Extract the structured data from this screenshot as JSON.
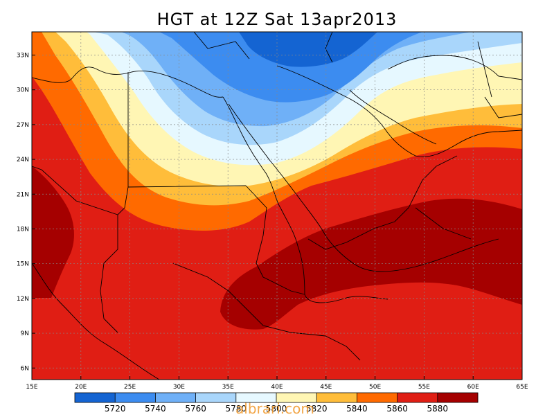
{
  "title": "HGT at 12Z Sat 13apr2013",
  "x_ticks": [
    "15E",
    "20E",
    "25E",
    "30E",
    "35E",
    "40E",
    "45E",
    "50E",
    "55E",
    "60E",
    "65E"
  ],
  "y_ticks": [
    "6N",
    "9N",
    "12N",
    "15N",
    "18N",
    "21N",
    "24N",
    "27N",
    "30N",
    "33N"
  ],
  "colorbar": {
    "labels": [
      "5720",
      "5740",
      "5760",
      "5780",
      "5800",
      "5820",
      "5840",
      "5860",
      "5880"
    ],
    "colors": [
      "#1464d2",
      "#3c8cf0",
      "#6fb0f7",
      "#a9d6fb",
      "#e6f8ff",
      "#fff6b4",
      "#ffbd3a",
      "#ff6a00",
      "#e01e14",
      "#a50000"
    ]
  },
  "watermark": "albrari.com"
}
